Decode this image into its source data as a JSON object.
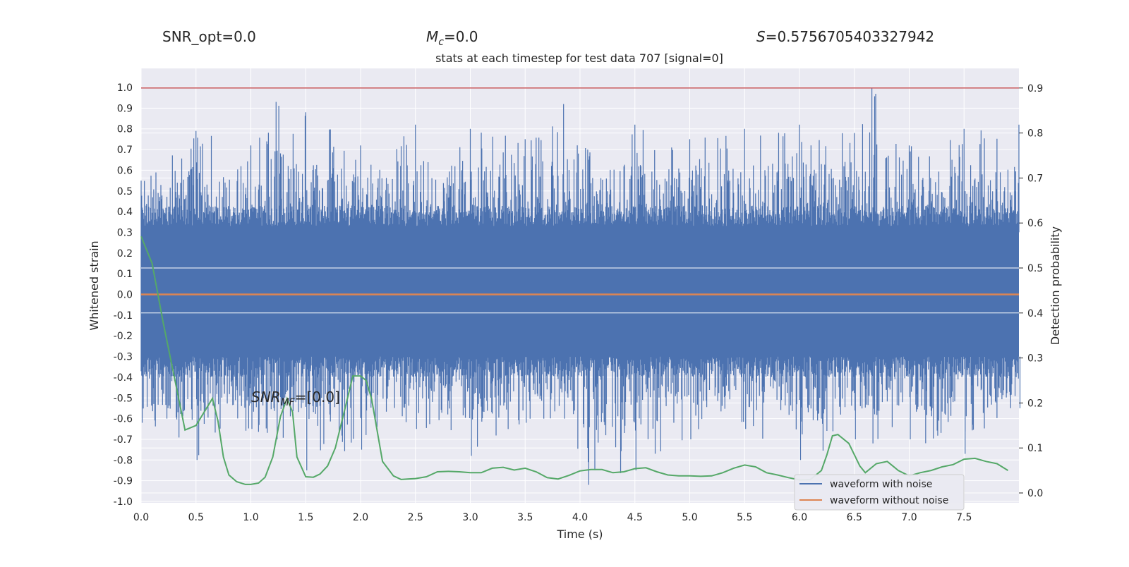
{
  "header": {
    "snr_opt": "SNR_opt=0.0",
    "mc_symbol": "M",
    "mc_sub": "c",
    "mc_value": "=0.0",
    "s_symbol": "S",
    "s_value": "=0.5756705403327942"
  },
  "annotation": {
    "symbol": "SNR",
    "sub": "MF",
    "value": "=[0.0]"
  },
  "chart_data": {
    "type": "line",
    "title": "stats at each timestep for test data 707 [signal=0]",
    "xlabel": "Time (s)",
    "ylabel": "Whitened strain",
    "y2label": "Detection probability",
    "xlim": [
      0.0,
      8.0
    ],
    "ylim": [
      -1.0,
      1.0
    ],
    "y2lim": [
      -0.02,
      0.92
    ],
    "xticks": [
      "0.0",
      "0.5",
      "1.0",
      "1.5",
      "2.0",
      "2.5",
      "3.0",
      "3.5",
      "4.0",
      "4.5",
      "5.0",
      "5.5",
      "6.0",
      "6.5",
      "7.0",
      "7.5"
    ],
    "yticks": [
      "1.0",
      "0.9",
      "0.8",
      "0.7",
      "0.6",
      "0.5",
      "0.4",
      "0.3",
      "0.2",
      "0.1",
      "0.0",
      "-0.1",
      "-0.2",
      "-0.3",
      "-0.4",
      "-0.5",
      "-0.6",
      "-0.7",
      "-0.8",
      "-0.9",
      "-1.0"
    ],
    "y2ticks": [
      "0.9",
      "0.8",
      "0.7",
      "0.6",
      "0.5",
      "0.4",
      "0.3",
      "0.2",
      "0.1",
      "0.0"
    ],
    "grid": true,
    "legend_position": "bottom-right",
    "threshold": {
      "value": 0.9,
      "axis": "y2",
      "color": "#c44e52"
    },
    "series": [
      {
        "name": "waveform with noise",
        "axis": "y",
        "color": "#4c72b0",
        "kind": "noise",
        "envelope": [
          {
            "x": 0.0,
            "min": -0.62,
            "max": 0.55
          },
          {
            "x": 0.5,
            "min": -0.8,
            "max": 0.79
          },
          {
            "x": 1.0,
            "min": -0.65,
            "max": 0.72
          },
          {
            "x": 1.23,
            "min": -0.7,
            "max": 0.93
          },
          {
            "x": 1.5,
            "min": -0.85,
            "max": 0.88
          },
          {
            "x": 2.0,
            "min": -0.75,
            "max": 0.72
          },
          {
            "x": 2.5,
            "min": -0.65,
            "max": 0.82
          },
          {
            "x": 3.0,
            "min": -0.78,
            "max": 0.8
          },
          {
            "x": 3.5,
            "min": -0.62,
            "max": 0.75
          },
          {
            "x": 3.85,
            "min": -0.6,
            "max": 0.92
          },
          {
            "x": 4.07,
            "min": -0.92,
            "max": 0.7
          },
          {
            "x": 4.5,
            "min": -0.85,
            "max": 0.82
          },
          {
            "x": 5.0,
            "min": -0.7,
            "max": 0.75
          },
          {
            "x": 5.5,
            "min": -0.65,
            "max": 0.8
          },
          {
            "x": 6.0,
            "min": -0.8,
            "max": 0.82
          },
          {
            "x": 6.5,
            "min": -0.7,
            "max": 0.78
          },
          {
            "x": 6.66,
            "min": -0.72,
            "max": 1.0
          },
          {
            "x": 7.0,
            "min": -0.7,
            "max": 0.72
          },
          {
            "x": 7.5,
            "min": -0.77,
            "max": 0.8
          },
          {
            "x": 8.0,
            "min": -0.55,
            "max": 0.82
          }
        ]
      },
      {
        "name": "waveform without noise",
        "axis": "y",
        "color": "#dd8452",
        "x": [
          0.0,
          8.0
        ],
        "y": [
          0.0,
          0.0
        ]
      },
      {
        "name": "",
        "axis": "y2",
        "color": "#55a868",
        "x": [
          0.0,
          0.1,
          0.2,
          0.3,
          0.4,
          0.5,
          0.6,
          0.65,
          0.7,
          0.75,
          0.8,
          0.87,
          0.95,
          1.0,
          1.07,
          1.13,
          1.2,
          1.27,
          1.33,
          1.38,
          1.42,
          1.5,
          1.57,
          1.63,
          1.7,
          1.77,
          1.85,
          1.93,
          2.0,
          2.05,
          2.1,
          2.15,
          2.2,
          2.3,
          2.37,
          2.43,
          2.5,
          2.6,
          2.7,
          2.8,
          2.9,
          3.0,
          3.1,
          3.2,
          3.3,
          3.4,
          3.5,
          3.6,
          3.7,
          3.8,
          3.9,
          4.0,
          4.1,
          4.2,
          4.3,
          4.4,
          4.5,
          4.6,
          4.7,
          4.8,
          4.9,
          5.0,
          5.1,
          5.2,
          5.3,
          5.4,
          5.5,
          5.6,
          5.7,
          5.8,
          5.9,
          6.0,
          6.1,
          6.2,
          6.25,
          6.3,
          6.35,
          6.45,
          6.55,
          6.6,
          6.7,
          6.8,
          6.9,
          7.0,
          7.1,
          7.2,
          7.3,
          7.4,
          7.5,
          7.6,
          7.7,
          7.8,
          7.9
        ],
        "y": [
          0.57,
          0.51,
          0.38,
          0.26,
          0.14,
          0.15,
          0.19,
          0.21,
          0.16,
          0.08,
          0.04,
          0.025,
          0.019,
          0.019,
          0.022,
          0.035,
          0.08,
          0.17,
          0.21,
          0.18,
          0.08,
          0.036,
          0.035,
          0.042,
          0.06,
          0.1,
          0.18,
          0.26,
          0.26,
          0.25,
          0.21,
          0.14,
          0.07,
          0.038,
          0.03,
          0.031,
          0.032,
          0.036,
          0.047,
          0.048,
          0.047,
          0.045,
          0.045,
          0.055,
          0.057,
          0.051,
          0.055,
          0.047,
          0.034,
          0.031,
          0.039,
          0.049,
          0.052,
          0.052,
          0.045,
          0.047,
          0.054,
          0.056,
          0.047,
          0.04,
          0.038,
          0.038,
          0.037,
          0.038,
          0.045,
          0.055,
          0.062,
          0.058,
          0.045,
          0.04,
          0.034,
          0.029,
          0.03,
          0.05,
          0.085,
          0.127,
          0.13,
          0.11,
          0.06,
          0.045,
          0.065,
          0.07,
          0.05,
          0.038,
          0.045,
          0.05,
          0.058,
          0.063,
          0.075,
          0.077,
          0.07,
          0.065,
          0.05
        ]
      }
    ]
  }
}
